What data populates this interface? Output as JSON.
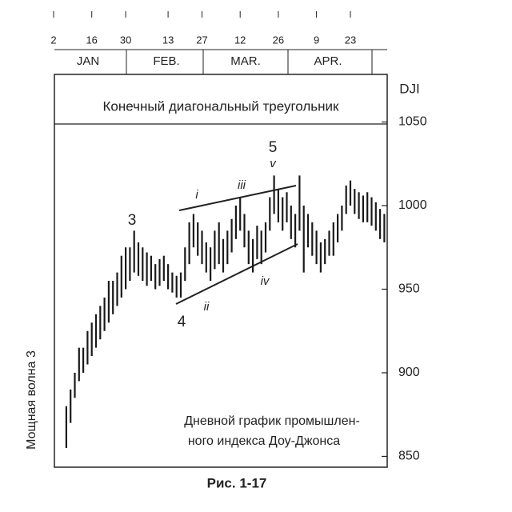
{
  "chart_data": {
    "type": "ohlc",
    "title": "Конечный диагональный треугольник",
    "y_label": "DJI",
    "side_label": "Мощная волна 3",
    "note": [
      "Дневной график промышлен-",
      "ного индекса Доу-Джонса"
    ],
    "caption": "Рис. 1-17",
    "months": [
      "JAN",
      "FEB.",
      "MAR.",
      "APR."
    ],
    "categories": [
      "2",
      null,
      null,
      null,
      null,
      null,
      null,
      null,
      null,
      "16",
      null,
      null,
      null,
      null,
      null,
      null,
      null,
      "30",
      null,
      null,
      null,
      null,
      null,
      null,
      null,
      null,
      null,
      "13",
      null,
      null,
      null,
      null,
      null,
      null,
      null,
      "27",
      null,
      null,
      null,
      null,
      null,
      null,
      null,
      null,
      "12",
      null,
      null,
      null,
      null,
      null,
      null,
      null,
      null,
      "26",
      null,
      null,
      null,
      null,
      null,
      null,
      null,
      null,
      "9",
      null,
      null,
      null,
      null,
      null,
      null,
      null,
      "23",
      null,
      null,
      null,
      null,
      null,
      null,
      null,
      null
    ],
    "high": [
      null,
      null,
      null,
      880,
      890,
      900,
      915,
      915,
      925,
      930,
      935,
      940,
      945,
      955,
      955,
      960,
      970,
      975,
      975,
      985,
      978,
      975,
      972,
      970,
      965,
      968,
      970,
      965,
      960,
      958,
      960,
      975,
      990,
      995,
      990,
      985,
      978,
      975,
      985,
      990,
      980,
      985,
      992,
      1000,
      1005,
      995,
      985,
      980,
      988,
      985,
      990,
      1005,
      1018,
      1010,
      1005,
      1008,
      1000,
      995,
      1018,
      1000,
      995,
      990,
      985,
      978,
      980,
      985,
      990,
      995,
      1000,
      1012,
      1015,
      1010,
      1008,
      1006,
      1008,
      1005,
      1002,
      998,
      995
    ],
    "low": [
      null,
      null,
      null,
      855,
      870,
      885,
      895,
      900,
      905,
      910,
      915,
      920,
      925,
      930,
      935,
      940,
      945,
      950,
      955,
      960,
      958,
      955,
      952,
      955,
      950,
      952,
      955,
      950,
      948,
      945,
      945,
      955,
      965,
      975,
      970,
      965,
      960,
      955,
      962,
      965,
      960,
      965,
      972,
      980,
      985,
      975,
      965,
      960,
      968,
      965,
      972,
      985,
      995,
      990,
      985,
      990,
      980,
      975,
      985,
      960,
      975,
      970,
      965,
      960,
      965,
      970,
      970,
      978,
      985,
      995,
      1000,
      995,
      992,
      990,
      990,
      988,
      985,
      980,
      978
    ],
    "color": "#1a1a1a",
    "ylim": [
      844,
      1078
    ],
    "yticks": [
      850,
      900,
      950,
      1000,
      1050
    ],
    "annotations": [
      "3",
      "4",
      "5",
      "v",
      "i",
      "iii",
      "ii",
      "iv"
    ]
  }
}
